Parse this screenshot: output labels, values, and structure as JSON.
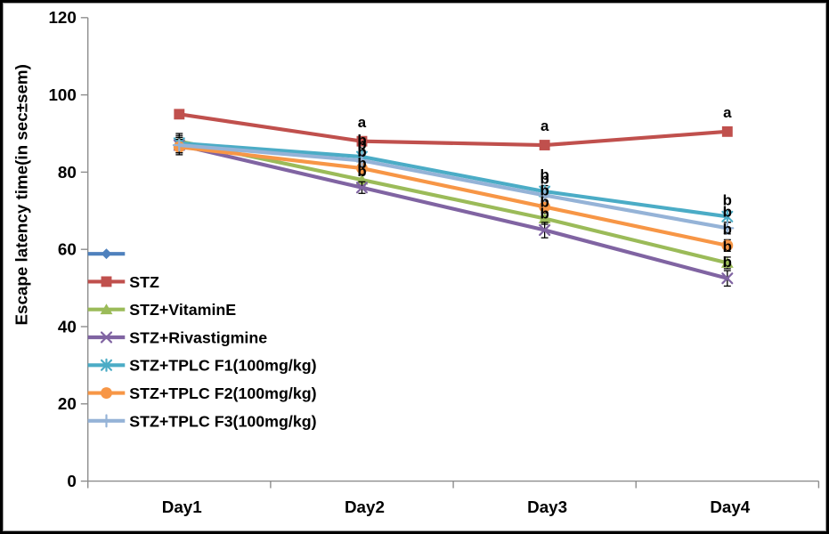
{
  "chart_data": {
    "type": "line",
    "title": "",
    "xlabel": "",
    "ylabel": "Escape latency time(in sec±sem)",
    "categories": [
      "Day1",
      "Day2",
      "Day3",
      "Day4"
    ],
    "ylim": [
      0,
      120
    ],
    "yticks": [
      0,
      20,
      40,
      60,
      80,
      100,
      120
    ],
    "grid": false,
    "legend_position": "inside-left-middle",
    "axis_color": "#8C8C8C",
    "error_bar_color": "#000000",
    "series": [
      {
        "name": "",
        "color": "#4F81BD",
        "marker": "diamond",
        "values": [
          null,
          null,
          null,
          null
        ],
        "sem": [
          0,
          0,
          0,
          0
        ],
        "point_labels": [
          "",
          "",
          "",
          ""
        ]
      },
      {
        "name": "STZ",
        "color": "#C0504D",
        "marker": "square",
        "values": [
          95,
          88,
          87,
          90.5
        ],
        "sem": [
          1,
          1,
          1,
          1
        ],
        "point_labels": [
          "",
          "a",
          "a",
          "a"
        ]
      },
      {
        "name": "STZ+VitaminE",
        "color": "#9BBB59",
        "marker": "triangle",
        "values": [
          88,
          78,
          68,
          56.5
        ],
        "sem": [
          2,
          1.5,
          1.5,
          1.5
        ],
        "point_labels": [
          "",
          "b",
          "b",
          "b"
        ]
      },
      {
        "name": "STZ+Rivastigmine",
        "color": "#8064A2",
        "marker": "x",
        "values": [
          87,
          76,
          65,
          52.5
        ],
        "sem": [
          2,
          1.5,
          2,
          2
        ],
        "point_labels": [
          "",
          "b",
          "b",
          "b"
        ]
      },
      {
        "name": "STZ+TPLC F1(100mg/kg)",
        "color": "#4BACC6",
        "marker": "asterisk",
        "values": [
          87.5,
          84,
          75,
          68.5
        ],
        "sem": [
          2,
          1.5,
          1.5,
          1.5
        ],
        "point_labels": [
          "",
          "b",
          "b",
          "b"
        ]
      },
      {
        "name": "STZ+TPLC F2(100mg/kg)",
        "color": "#F79646",
        "marker": "circle",
        "values": [
          86.5,
          81,
          71,
          61
        ],
        "sem": [
          2,
          1.5,
          1.5,
          1.5
        ],
        "point_labels": [
          "",
          "b",
          "b",
          "b"
        ]
      },
      {
        "name": "STZ+TPLC F3(100mg/kg)",
        "color": "#95B3D7",
        "marker": "plus",
        "values": [
          87,
          83,
          74,
          65.5
        ],
        "sem": [
          2,
          1.5,
          1.5,
          1.5
        ],
        "point_labels": [
          "",
          "b",
          "b",
          "b"
        ]
      }
    ]
  }
}
